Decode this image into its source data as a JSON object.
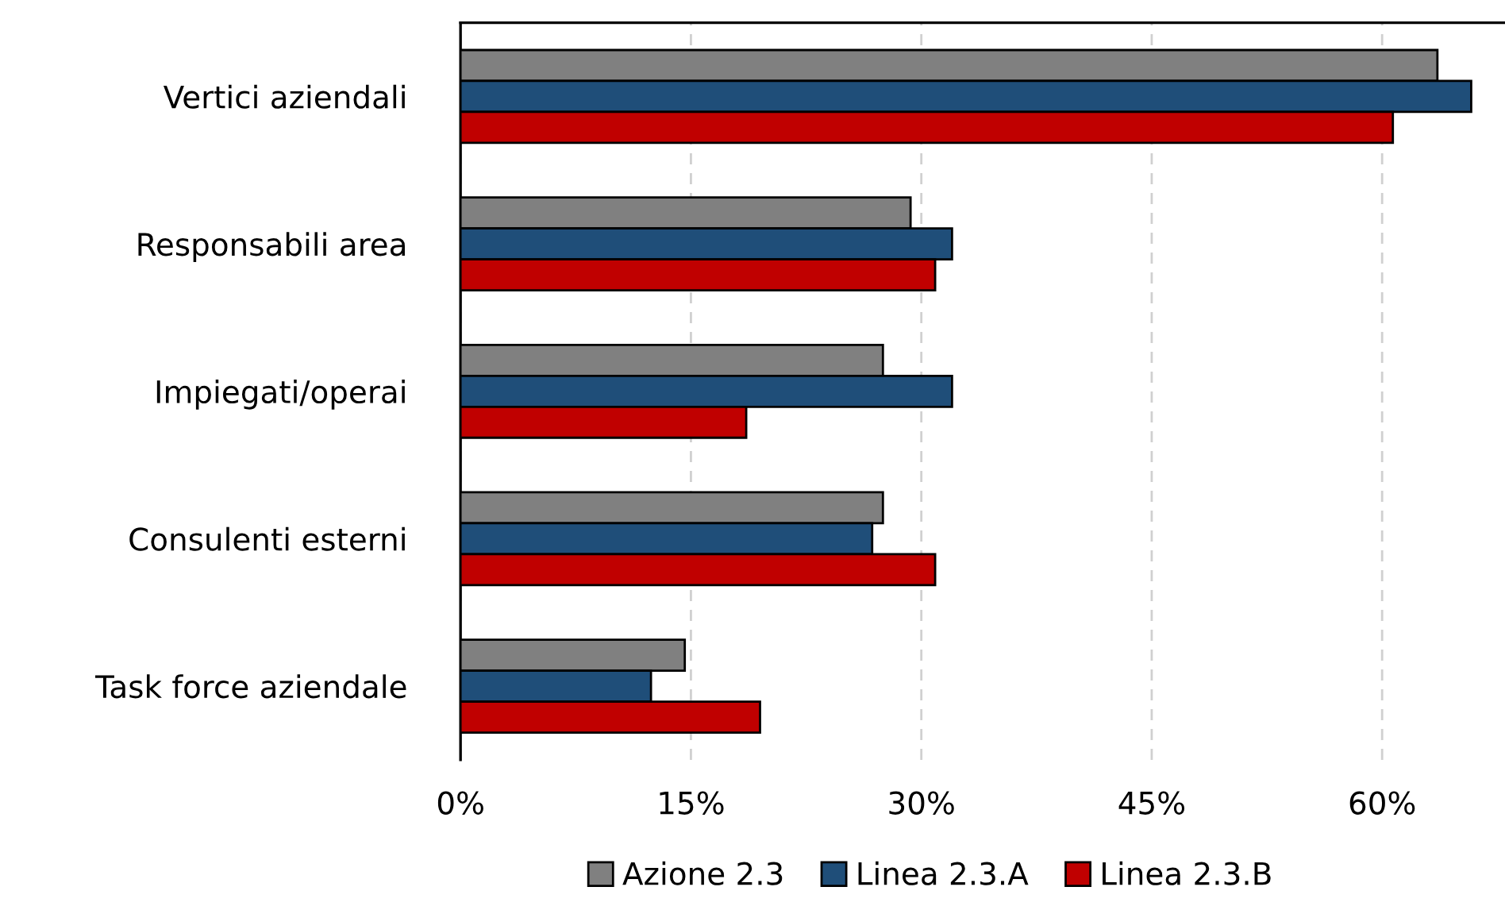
{
  "chart_data": {
    "type": "bar",
    "orientation": "horizontal",
    "categories": [
      "Vertici aziendali",
      "Responsabili area",
      "Impiegati/operai",
      "Consulenti esterni",
      "Task force aziendale"
    ],
    "series": [
      {
        "name": "Azione 2.3",
        "color": "#808080",
        "values": [
          63.6,
          29.3,
          27.5,
          27.5,
          14.6
        ]
      },
      {
        "name": "Linea 2.3.A",
        "color": "#1f4e79",
        "values": [
          65.8,
          32.0,
          32.0,
          26.8,
          12.4
        ]
      },
      {
        "name": "Linea 2.3.B",
        "color": "#c00000",
        "values": [
          60.7,
          30.9,
          18.6,
          30.9,
          19.5
        ]
      }
    ],
    "xlim": [
      0,
      68
    ],
    "xticks": [
      {
        "value": 0,
        "label": "0%"
      },
      {
        "value": 15,
        "label": "15%"
      },
      {
        "value": 30,
        "label": "30%"
      },
      {
        "value": 45,
        "label": "45%"
      },
      {
        "value": 60,
        "label": "60%"
      }
    ],
    "grid": "x",
    "legend": "bottom"
  }
}
